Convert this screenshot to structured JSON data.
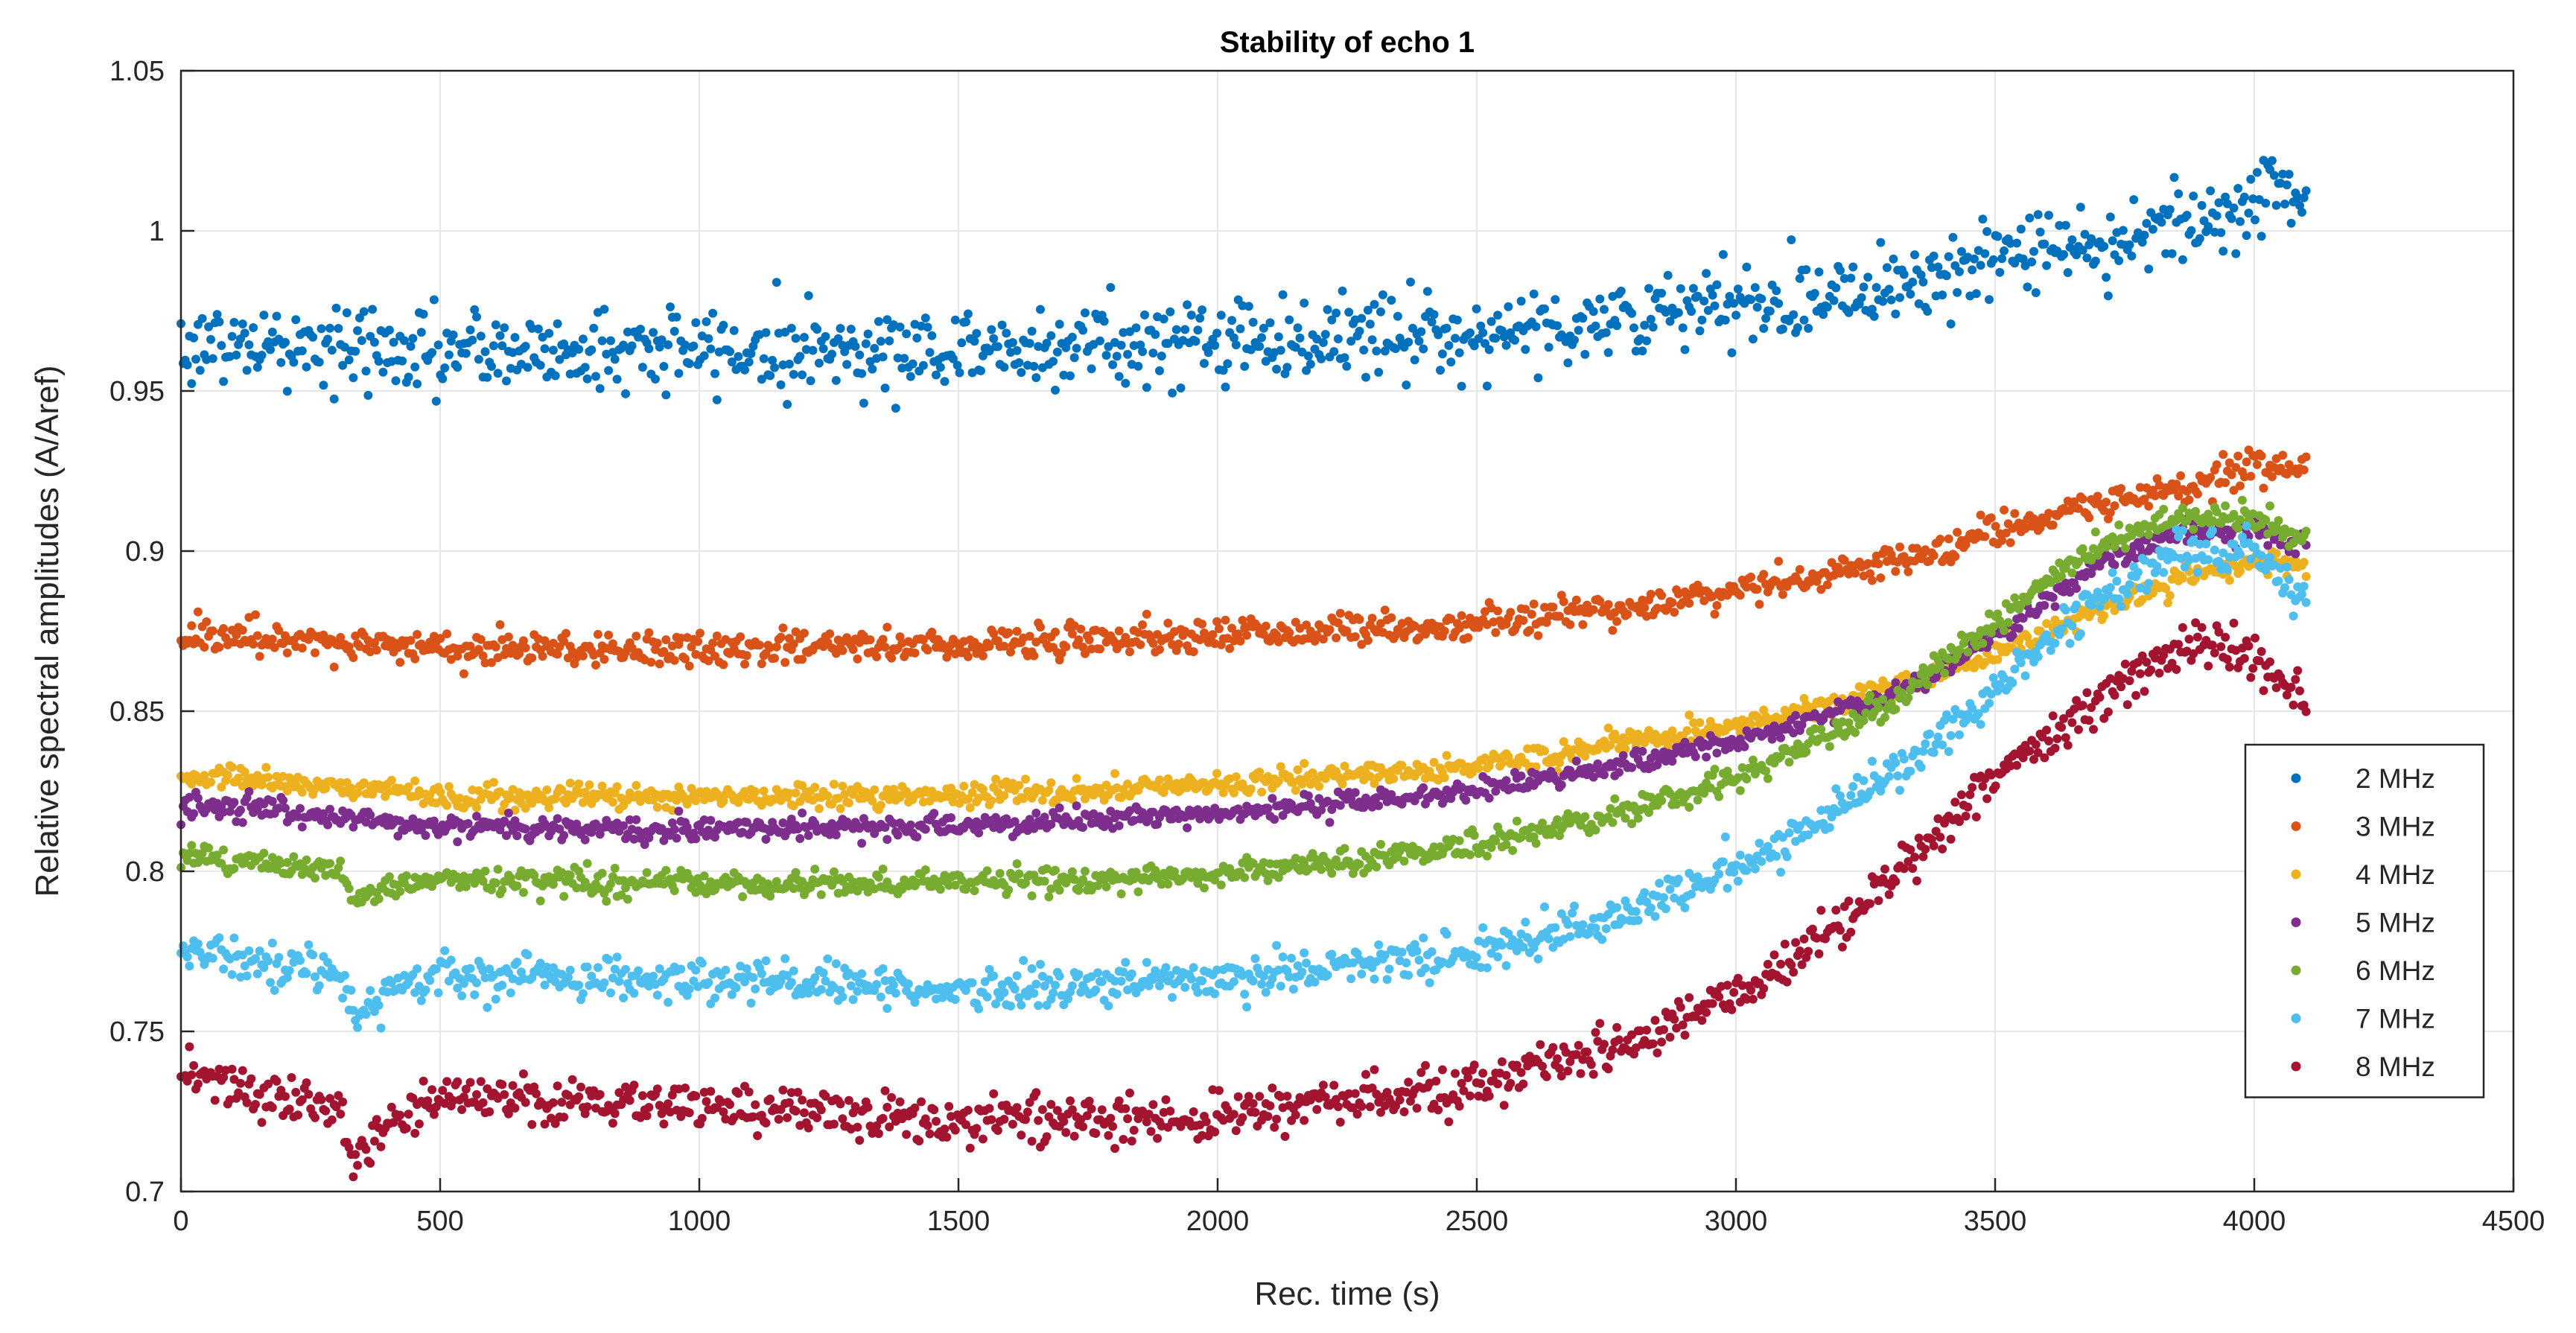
{
  "chart_data": {
    "type": "scatter",
    "title": "Stability of echo 1",
    "xlabel": "Rec. time (s)",
    "ylabel": "Relative spectral amplitudes (A/Aref)",
    "xlim": [
      0,
      4500
    ],
    "ylim": [
      0.7,
      1.05
    ],
    "xticks": [
      0,
      500,
      1000,
      1500,
      2000,
      2500,
      3000,
      3500,
      4000,
      4500
    ],
    "yticks": [
      0.7,
      0.75,
      0.8,
      0.85,
      0.9,
      0.95,
      1,
      1.05
    ],
    "xtick_labels": [
      "0",
      "500",
      "1000",
      "1500",
      "2000",
      "2500",
      "3000",
      "3500",
      "4000",
      "4500"
    ],
    "ytick_labels": [
      "0.7",
      "0.75",
      "0.8",
      "0.85",
      "0.9",
      "0.95",
      "1",
      "1.05"
    ],
    "grid": true,
    "legend_position": "right",
    "sampling": {
      "x_start": 0,
      "x_end": 4100,
      "points_per_series": 1000
    },
    "series": [
      {
        "name": "2 MHz",
        "color": "#0072BD",
        "noise": 0.0065,
        "trend": [
          [
            0,
            0.965
          ],
          [
            500,
            0.962
          ],
          [
            1000,
            0.963
          ],
          [
            1500,
            0.963
          ],
          [
            2000,
            0.966
          ],
          [
            2500,
            0.968
          ],
          [
            3000,
            0.976
          ],
          [
            3500,
            0.99
          ],
          [
            3800,
            1.0
          ],
          [
            4000,
            1.01
          ],
          [
            4100,
            1.012
          ]
        ]
      },
      {
        "name": "3 MHz",
        "color": "#D95319",
        "noise": 0.0025,
        "trend": [
          [
            0,
            0.874
          ],
          [
            300,
            0.871
          ],
          [
            500,
            0.87
          ],
          [
            1000,
            0.869
          ],
          [
            1500,
            0.871
          ],
          [
            2000,
            0.874
          ],
          [
            2500,
            0.877
          ],
          [
            3000,
            0.887
          ],
          [
            3300,
            0.897
          ],
          [
            3500,
            0.906
          ],
          [
            3800,
            0.918
          ],
          [
            4000,
            0.925
          ],
          [
            4100,
            0.927
          ]
        ]
      },
      {
        "name": "4 MHz",
        "color": "#EDB120",
        "noise": 0.0018,
        "trend": [
          [
            0,
            0.83
          ],
          [
            300,
            0.826
          ],
          [
            500,
            0.824
          ],
          [
            1000,
            0.823
          ],
          [
            1500,
            0.824
          ],
          [
            2000,
            0.827
          ],
          [
            2500,
            0.833
          ],
          [
            3000,
            0.845
          ],
          [
            3300,
            0.857
          ],
          [
            3500,
            0.868
          ],
          [
            3700,
            0.882
          ],
          [
            3850,
            0.892
          ],
          [
            4000,
            0.897
          ],
          [
            4100,
            0.895
          ]
        ]
      },
      {
        "name": "5 MHz",
        "color": "#7E2F8E",
        "noise": 0.0018,
        "trend": [
          [
            0,
            0.822
          ],
          [
            300,
            0.816
          ],
          [
            500,
            0.814
          ],
          [
            1000,
            0.813
          ],
          [
            1500,
            0.814
          ],
          [
            2000,
            0.818
          ],
          [
            2500,
            0.825
          ],
          [
            3000,
            0.84
          ],
          [
            3300,
            0.855
          ],
          [
            3500,
            0.873
          ],
          [
            3700,
            0.896
          ],
          [
            3850,
            0.905
          ],
          [
            4000,
            0.906
          ],
          [
            4100,
            0.903
          ]
        ]
      },
      {
        "name": "6 MHz",
        "color": "#77AC30",
        "noise": 0.002,
        "trend": [
          [
            0,
            0.805
          ],
          [
            300,
            0.8
          ],
          [
            340,
            0.79
          ],
          [
            400,
            0.795
          ],
          [
            500,
            0.798
          ],
          [
            1000,
            0.796
          ],
          [
            1500,
            0.796
          ],
          [
            2000,
            0.799
          ],
          [
            2500,
            0.808
          ],
          [
            3000,
            0.828
          ],
          [
            3300,
            0.852
          ],
          [
            3500,
            0.878
          ],
          [
            3700,
            0.902
          ],
          [
            3850,
            0.911
          ],
          [
            4000,
            0.911
          ],
          [
            4100,
            0.904
          ]
        ]
      },
      {
        "name": "7 MHz",
        "color": "#4DBEEE",
        "noise": 0.0032,
        "trend": [
          [
            0,
            0.776
          ],
          [
            300,
            0.768
          ],
          [
            340,
            0.754
          ],
          [
            400,
            0.764
          ],
          [
            500,
            0.768
          ],
          [
            1000,
            0.766
          ],
          [
            1500,
            0.763
          ],
          [
            2000,
            0.766
          ],
          [
            2500,
            0.775
          ],
          [
            2800,
            0.788
          ],
          [
            3000,
            0.8
          ],
          [
            3300,
            0.83
          ],
          [
            3500,
            0.857
          ],
          [
            3700,
            0.885
          ],
          [
            3850,
            0.9
          ],
          [
            4000,
            0.898
          ],
          [
            4100,
            0.883
          ]
        ]
      },
      {
        "name": "8 MHz",
        "color": "#A2142F",
        "noise": 0.0035,
        "trend": [
          [
            0,
            0.737
          ],
          [
            300,
            0.726
          ],
          [
            340,
            0.706
          ],
          [
            400,
            0.722
          ],
          [
            500,
            0.729
          ],
          [
            1000,
            0.727
          ],
          [
            1500,
            0.722
          ],
          [
            2000,
            0.724
          ],
          [
            2500,
            0.733
          ],
          [
            2800,
            0.746
          ],
          [
            3000,
            0.762
          ],
          [
            3200,
            0.783
          ],
          [
            3400,
            0.815
          ],
          [
            3600,
            0.842
          ],
          [
            3800,
            0.866
          ],
          [
            3900,
            0.872
          ],
          [
            4000,
            0.866
          ],
          [
            4100,
            0.853
          ]
        ]
      }
    ]
  }
}
